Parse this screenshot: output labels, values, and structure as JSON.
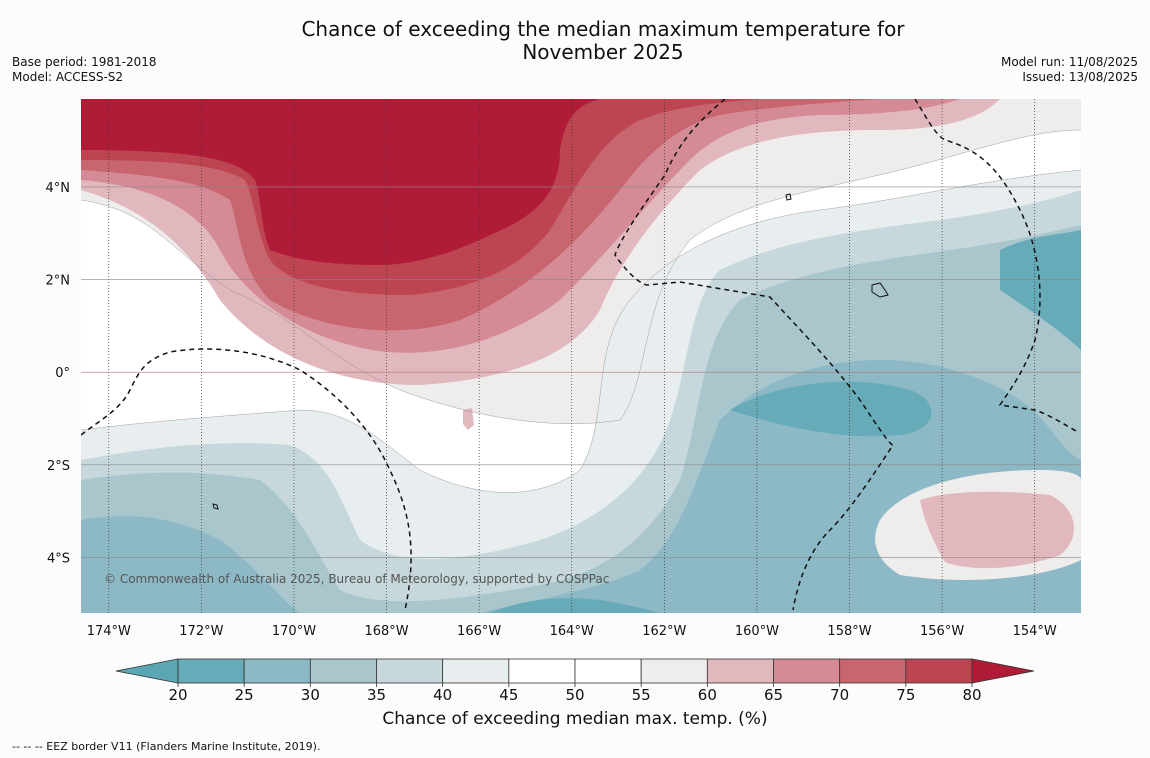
{
  "title_line1": "Chance of exceeding the median maximum temperature for",
  "title_line2": "November 2025",
  "base_period": "Base period: 1981-2018",
  "model": "Model: ACCESS-S2",
  "model_run": "Model run: 11/08/2025",
  "issued": "Issued: 13/08/2025",
  "copyright": "© Commonwealth of Australia 2025, Bureau of Meteorology, supported by COSPPac",
  "footnote": "--  --  -- EEZ border V11 (Flanders Marine Institute, 2019).",
  "colorbar": {
    "label": "Chance of exceeding median max. temp. (%)",
    "ticks": [
      "20",
      "25",
      "30",
      "35",
      "40",
      "45",
      "50",
      "55",
      "60",
      "65",
      "70",
      "75",
      "80"
    ],
    "colors": [
      "#67abb9",
      "#8cb9c5",
      "#a8c6cc",
      "#c6d8dc",
      "#e8eef0",
      "#ffffff",
      "#ffffff",
      "#efedec",
      "#e1b8be",
      "#d58b96",
      "#c8666f",
      "#bd4552"
    ],
    "under_color": "#5aa6b5",
    "over_color": "#b01c38"
  },
  "map": {
    "lon_labels": [
      "174°W",
      "172°W",
      "170°W",
      "168°W",
      "166°W",
      "164°W",
      "162°W",
      "160°W",
      "158°W",
      "156°W",
      "154°W"
    ],
    "lat_labels": [
      "4°N",
      "2°N",
      "0°",
      "2°S",
      "4°S"
    ],
    "lon_range": [
      -174.6,
      -153.0
    ],
    "lat_range": [
      -5.2,
      5.9
    ],
    "lon_ticks": [
      -174,
      -172,
      -170,
      -168,
      -166,
      -164,
      -162,
      -160,
      -158,
      -156,
      -154
    ],
    "lat_ticks": [
      4,
      2,
      0,
      -2,
      -4
    ]
  }
}
